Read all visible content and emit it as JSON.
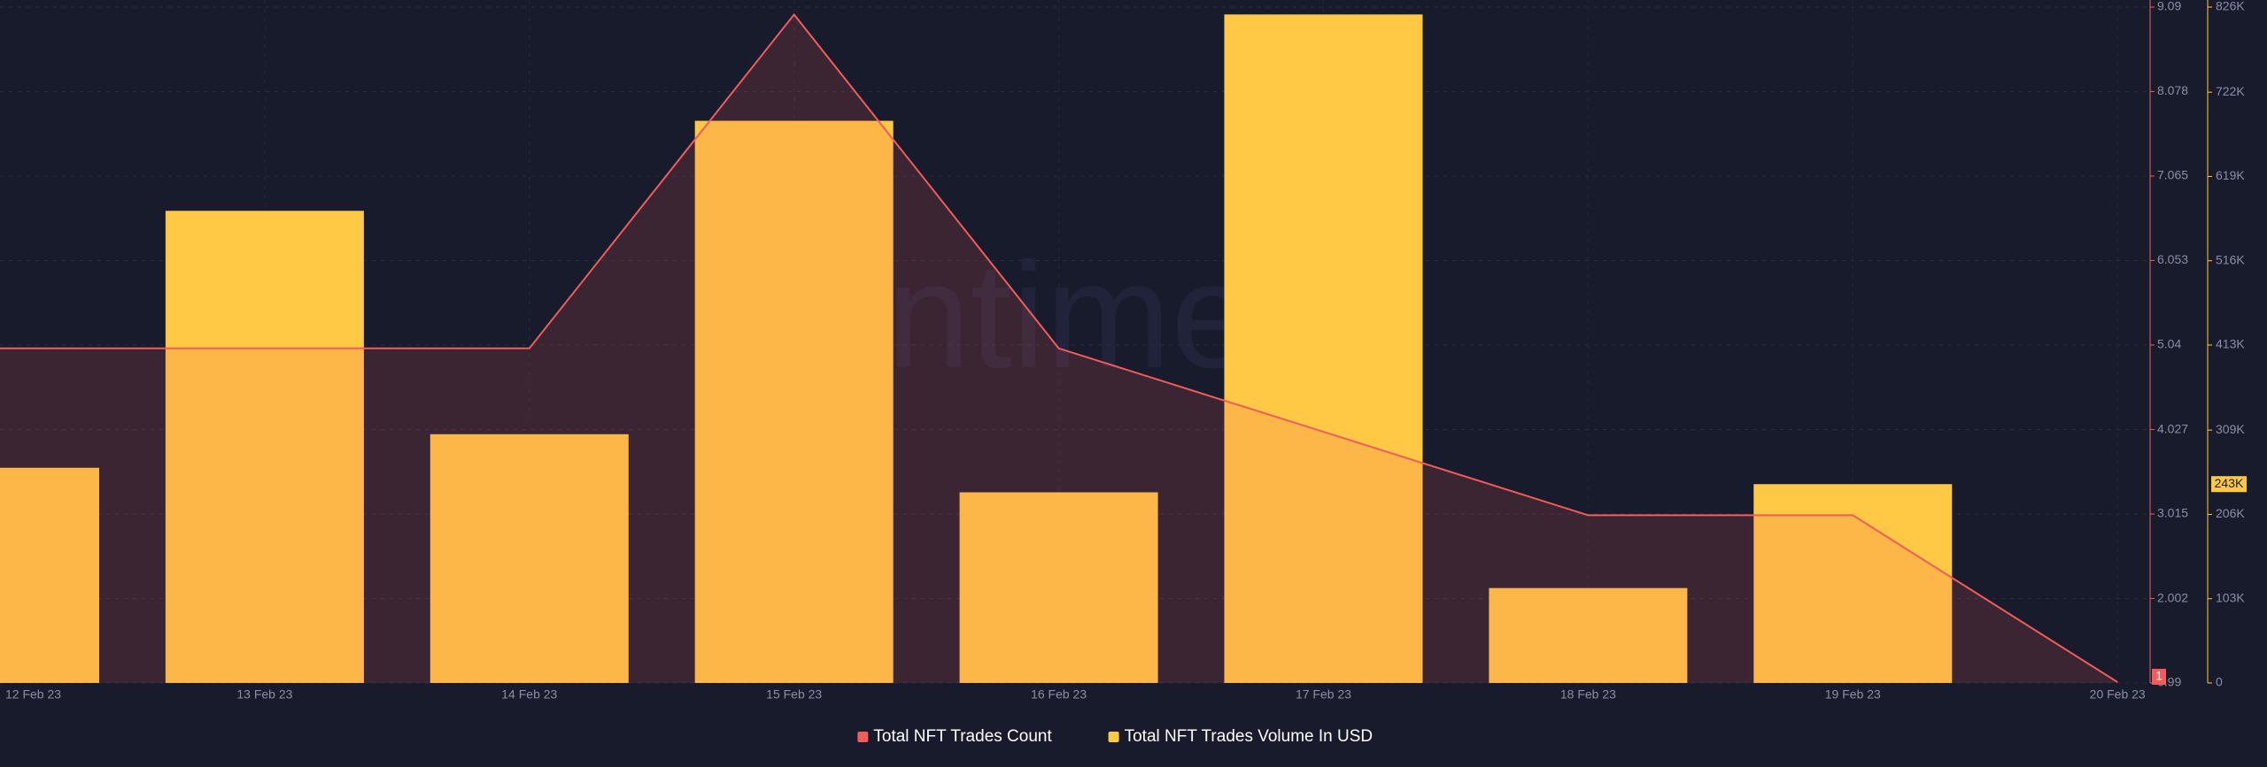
{
  "chart_data": {
    "type": "combo",
    "watermark": "santiment",
    "categories": [
      "12 Feb 23",
      "13 Feb 23",
      "14 Feb 23",
      "15 Feb 23",
      "16 Feb 23",
      "17 Feb 23",
      "18 Feb 23",
      "19 Feb 23",
      "20 Feb 23"
    ],
    "series": [
      {
        "name": "Total NFT Trades Count",
        "type": "line",
        "axis": "y",
        "color": "#f25c5c",
        "values": [
          5,
          5,
          5,
          9,
          5,
          4,
          3,
          3,
          1
        ],
        "badge": 1
      },
      {
        "name": "Total NFT Trades Volume In USD",
        "type": "bar",
        "axis": "y2",
        "color": "#ffc845",
        "values": [
          263000,
          577000,
          304000,
          687000,
          233000,
          817000,
          116000,
          243000,
          null
        ],
        "badge": {
          "value": 243000,
          "label": "243K"
        }
      }
    ],
    "ylim": [
      0.99,
      9.09
    ],
    "yticks": [
      0.99,
      2.002,
      3.015,
      4.027,
      5.04,
      6.053,
      7.065,
      8.078,
      9.09
    ],
    "y2lim": [
      0,
      826000
    ],
    "y2ticks": [
      0,
      {
        "value": 103000,
        "label": "103K"
      },
      {
        "value": 206000,
        "label": "206K"
      },
      {
        "value": 309000,
        "label": "309K"
      },
      {
        "value": 413000,
        "label": "413K"
      },
      {
        "value": 516000,
        "label": "516K"
      },
      {
        "value": 619000,
        "label": "619K"
      },
      {
        "value": 722000,
        "label": "722K"
      },
      {
        "value": 826000,
        "label": "826K"
      }
    ],
    "grid": true,
    "legend": "bottom"
  }
}
